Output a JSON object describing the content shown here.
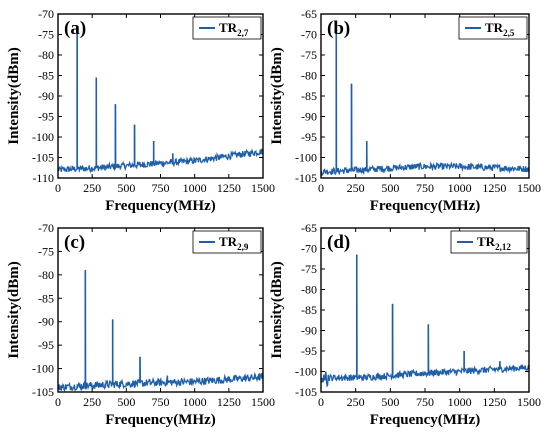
{
  "colors": {
    "trace": "#1f5fa8",
    "axis": "#000000",
    "background": "#ffffff"
  },
  "chart_data": [
    {
      "type": "line",
      "panel_label": "(a)",
      "legend": {
        "main": "TR",
        "subscript": "2,7",
        "placement": "top-right"
      },
      "xlabel": "Frequency(MHz)",
      "ylabel": "Intensity(dBm)",
      "xlim": [
        0,
        1500
      ],
      "ylim": [
        -110,
        -70
      ],
      "xticks": [
        0,
        250,
        500,
        750,
        1000,
        1250,
        1500
      ],
      "yticks": [
        -110,
        -105,
        -100,
        -95,
        -90,
        -85,
        -80,
        -75,
        -70
      ],
      "noise_floor": [
        [
          0,
          -108
        ],
        [
          300,
          -107.5
        ],
        [
          700,
          -106.5
        ],
        [
          1000,
          -105.8
        ],
        [
          1500,
          -103.5
        ]
      ],
      "peaks": [
        {
          "x": 140,
          "y": -73.5
        },
        {
          "x": 280,
          "y": -85.5
        },
        {
          "x": 420,
          "y": -92
        },
        {
          "x": 560,
          "y": -97
        },
        {
          "x": 700,
          "y": -101
        },
        {
          "x": 840,
          "y": -104
        }
      ]
    },
    {
      "type": "line",
      "panel_label": "(b)",
      "legend": {
        "main": "TR",
        "subscript": "2,5",
        "placement": "top-right"
      },
      "xlabel": "Frequency(MHz)",
      "ylabel": "Intensity(dBm)",
      "xlim": [
        0,
        1500
      ],
      "ylim": [
        -105,
        -65
      ],
      "xticks": [
        0,
        250,
        500,
        750,
        1000,
        1250,
        1500
      ],
      "yticks": [
        -105,
        -100,
        -95,
        -90,
        -85,
        -80,
        -75,
        -70,
        -65
      ],
      "noise_floor": [
        [
          0,
          -103.5
        ],
        [
          300,
          -103
        ],
        [
          700,
          -102.2
        ],
        [
          1000,
          -102.2
        ],
        [
          1500,
          -102.8
        ]
      ],
      "peaks": [
        {
          "x": 110,
          "y": -68.5
        },
        {
          "x": 220,
          "y": -82
        },
        {
          "x": 330,
          "y": -96
        }
      ]
    },
    {
      "type": "line",
      "panel_label": "(c)",
      "legend": {
        "main": "TR",
        "subscript": "2,9",
        "placement": "top-right"
      },
      "xlabel": "Frequency(MHz)",
      "ylabel": "Intensity(dBm)",
      "xlim": [
        0,
        1500
      ],
      "ylim": [
        -105,
        -70
      ],
      "xticks": [
        0,
        250,
        500,
        750,
        1000,
        1250,
        1500
      ],
      "yticks": [
        -105,
        -100,
        -95,
        -90,
        -85,
        -80,
        -75,
        -70
      ],
      "noise_floor": [
        [
          0,
          -104
        ],
        [
          300,
          -103.5
        ],
        [
          700,
          -103
        ],
        [
          1000,
          -102.8
        ],
        [
          1500,
          -101.8
        ]
      ],
      "peaks": [
        {
          "x": 200,
          "y": -79
        },
        {
          "x": 400,
          "y": -89.5
        },
        {
          "x": 600,
          "y": -97.5
        },
        {
          "x": 800,
          "y": -101.5
        }
      ]
    },
    {
      "type": "line",
      "panel_label": "(d)",
      "legend": {
        "main": "TR",
        "subscript": "2,12",
        "placement": "top-right"
      },
      "xlabel": "Frequency(MHz)",
      "ylabel": "Intensity(dBm)",
      "xlim": [
        0,
        1500
      ],
      "ylim": [
        -105,
        -65
      ],
      "xticks": [
        0,
        250,
        500,
        750,
        1000,
        1250,
        1500
      ],
      "yticks": [
        -105,
        -100,
        -95,
        -90,
        -85,
        -80,
        -75,
        -70,
        -65
      ],
      "noise_floor": [
        [
          0,
          -101.5
        ],
        [
          300,
          -101.5
        ],
        [
          700,
          -100.5
        ],
        [
          1000,
          -100
        ],
        [
          1500,
          -99
        ]
      ],
      "peaks": [
        {
          "x": 258,
          "y": -71.5
        },
        {
          "x": 516,
          "y": -83.5
        },
        {
          "x": 774,
          "y": -88.5
        },
        {
          "x": 1032,
          "y": -95
        },
        {
          "x": 1290,
          "y": -97.5
        }
      ]
    }
  ]
}
